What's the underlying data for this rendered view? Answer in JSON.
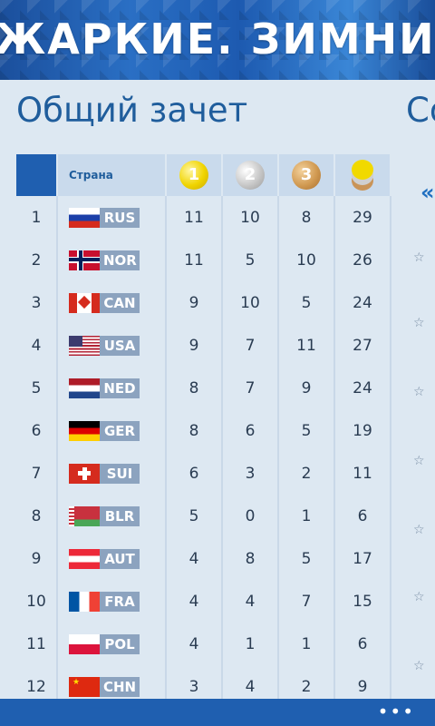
{
  "banner": {
    "text": "ЖАРКИЕ. ЗИМНИЕ. ТВОИ."
  },
  "page": {
    "title": "Общий зачет",
    "next_title": "Со",
    "next_arrow": "«"
  },
  "table": {
    "headers": {
      "country": "Страна",
      "gold": "1",
      "silver": "2",
      "bronze": "3"
    },
    "rows": [
      {
        "rank": "1",
        "code": "RUS",
        "gold": "11",
        "silver": "10",
        "bronze": "8",
        "total": "29"
      },
      {
        "rank": "2",
        "code": "NOR",
        "gold": "11",
        "silver": "5",
        "bronze": "10",
        "total": "26"
      },
      {
        "rank": "3",
        "code": "CAN",
        "gold": "9",
        "silver": "10",
        "bronze": "5",
        "total": "24"
      },
      {
        "rank": "4",
        "code": "USA",
        "gold": "9",
        "silver": "7",
        "bronze": "11",
        "total": "27"
      },
      {
        "rank": "5",
        "code": "NED",
        "gold": "8",
        "silver": "7",
        "bronze": "9",
        "total": "24"
      },
      {
        "rank": "6",
        "code": "GER",
        "gold": "8",
        "silver": "6",
        "bronze": "5",
        "total": "19"
      },
      {
        "rank": "7",
        "code": "SUI",
        "gold": "6",
        "silver": "3",
        "bronze": "2",
        "total": "11"
      },
      {
        "rank": "8",
        "code": "BLR",
        "gold": "5",
        "silver": "0",
        "bronze": "1",
        "total": "6"
      },
      {
        "rank": "9",
        "code": "AUT",
        "gold": "4",
        "silver": "8",
        "bronze": "5",
        "total": "17"
      },
      {
        "rank": "10",
        "code": "FRA",
        "gold": "4",
        "silver": "4",
        "bronze": "7",
        "total": "15"
      },
      {
        "rank": "11",
        "code": "POL",
        "gold": "4",
        "silver": "1",
        "bronze": "1",
        "total": "6"
      },
      {
        "rank": "12",
        "code": "CHN",
        "gold": "3",
        "silver": "4",
        "bronze": "2",
        "total": "9"
      }
    ]
  },
  "appbar": {
    "more": "•••"
  },
  "icons": {
    "star": "☆"
  },
  "colors": {
    "accent": "#1f5fb0",
    "title": "#1f5d9c",
    "code_bg": "#8ca3bf"
  }
}
